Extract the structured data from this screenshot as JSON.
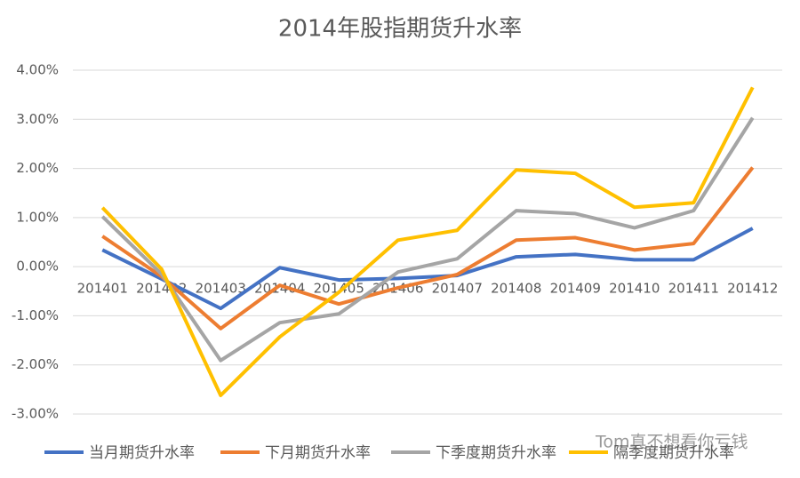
{
  "chart_data": {
    "type": "line",
    "title": "2014年股指期货升水率",
    "categories": [
      "201401",
      "201402",
      "201403",
      "201404",
      "201405",
      "201406",
      "201407",
      "201408",
      "201409",
      "201410",
      "201411",
      "201412"
    ],
    "series": [
      {
        "name": "当月期货升水率",
        "color": "#4472c4",
        "values": [
          0.34,
          -0.25,
          -0.85,
          -0.02,
          -0.27,
          -0.24,
          -0.18,
          0.2,
          0.25,
          0.14,
          0.14,
          0.78
        ]
      },
      {
        "name": "下月期货升水率",
        "color": "#ed7d31",
        "values": [
          0.62,
          -0.2,
          -1.26,
          -0.38,
          -0.76,
          -0.43,
          -0.16,
          0.54,
          0.59,
          0.34,
          0.47,
          2.02
        ]
      },
      {
        "name": "下季度期货升水率",
        "color": "#a5a5a5",
        "values": [
          1.02,
          -0.15,
          -1.91,
          -1.14,
          -0.96,
          -0.11,
          0.16,
          1.14,
          1.08,
          0.79,
          1.14,
          3.03
        ]
      },
      {
        "name": "隔季度期货升水率",
        "color": "#ffc000",
        "values": [
          1.2,
          -0.05,
          -2.62,
          -1.43,
          -0.52,
          0.54,
          0.74,
          1.97,
          1.9,
          1.21,
          1.3,
          3.65
        ]
      }
    ],
    "ylim": [
      -3,
      4
    ],
    "yticks": [
      {
        "value": -3,
        "label": "-3.00%"
      },
      {
        "value": -2,
        "label": "-2.00%"
      },
      {
        "value": -1,
        "label": "-1.00%"
      },
      {
        "value": 0,
        "label": "0.00%"
      },
      {
        "value": 1,
        "label": "1.00%"
      },
      {
        "value": 2,
        "label": "2.00%"
      },
      {
        "value": 3,
        "label": "3.00%"
      },
      {
        "value": 4,
        "label": "4.00%"
      }
    ],
    "grid": true,
    "watermark": "Tom真不想看你亏钱"
  }
}
